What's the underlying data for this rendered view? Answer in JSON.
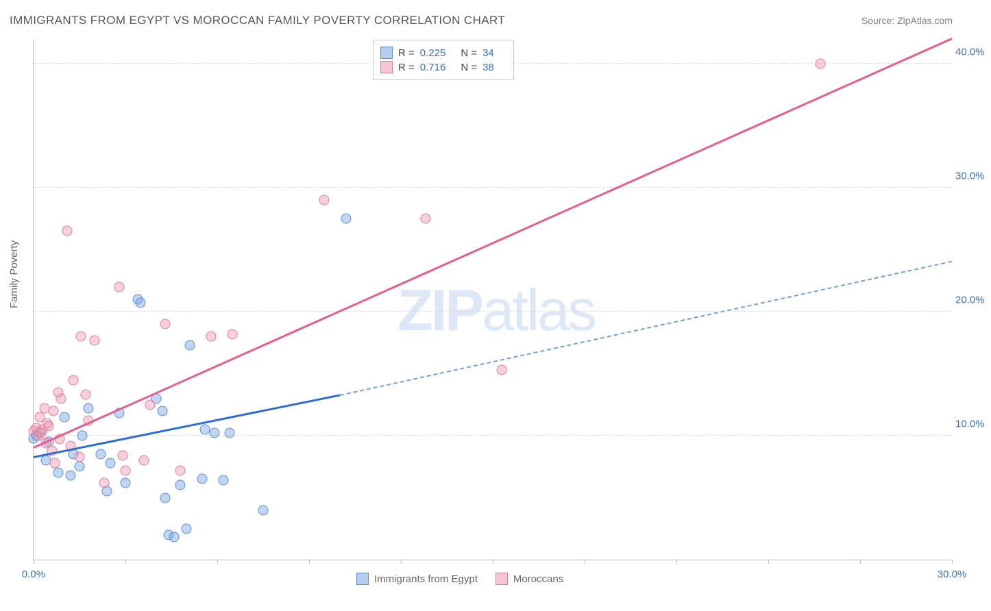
{
  "chart": {
    "type": "scatter",
    "title": "IMMIGRANTS FROM EGYPT VS MOROCCAN FAMILY POVERTY CORRELATION CHART",
    "source_label": "Source: ZipAtlas.com",
    "watermark": "ZIPatlas",
    "y_axis_label": "Family Poverty",
    "background_color": "#ffffff",
    "grid_color": "#dcdcdc",
    "axis_color": "#bbbbbb",
    "tick_label_color": "#3b6fd4",
    "xlim": [
      0,
      30
    ],
    "ylim": [
      0,
      42
    ],
    "x_ticks": [
      {
        "pos": 0,
        "label": "0.0%"
      },
      {
        "pos": 3,
        "label": ""
      },
      {
        "pos": 6,
        "label": ""
      },
      {
        "pos": 9,
        "label": ""
      },
      {
        "pos": 12,
        "label": ""
      },
      {
        "pos": 15,
        "label": ""
      },
      {
        "pos": 18,
        "label": ""
      },
      {
        "pos": 21,
        "label": ""
      },
      {
        "pos": 24,
        "label": ""
      },
      {
        "pos": 27,
        "label": ""
      },
      {
        "pos": 30,
        "label": "30.0%"
      }
    ],
    "y_ticks": [
      {
        "pos": 10,
        "label": "10.0%"
      },
      {
        "pos": 20,
        "label": "20.0%"
      },
      {
        "pos": 30,
        "label": "30.0%"
      },
      {
        "pos": 40,
        "label": "40.0%"
      }
    ],
    "series": [
      {
        "name": "Immigrants from Egypt",
        "color_fill": "rgba(120,165,225,0.45)",
        "color_stroke": "#5a8fd8",
        "trend_color": "#2d6cd4",
        "R": "0.225",
        "N": "34",
        "trend": {
          "x1": 0,
          "y1": 8.2,
          "x2": 10,
          "y2": 13.2,
          "x2_dash": 30,
          "y2_dash": 24.0
        },
        "points": [
          [
            0.0,
            9.8
          ],
          [
            0.1,
            10.0
          ],
          [
            0.2,
            10.3
          ],
          [
            0.4,
            8.0
          ],
          [
            0.5,
            9.5
          ],
          [
            0.8,
            7.0
          ],
          [
            1.0,
            11.5
          ],
          [
            1.2,
            6.8
          ],
          [
            1.3,
            8.5
          ],
          [
            1.5,
            7.5
          ],
          [
            1.6,
            10.0
          ],
          [
            1.8,
            12.2
          ],
          [
            2.2,
            8.5
          ],
          [
            2.4,
            5.5
          ],
          [
            2.5,
            7.8
          ],
          [
            2.8,
            11.8
          ],
          [
            3.0,
            6.2
          ],
          [
            3.4,
            21.0
          ],
          [
            3.5,
            20.7
          ],
          [
            4.0,
            13.0
          ],
          [
            4.2,
            12.0
          ],
          [
            4.3,
            5.0
          ],
          [
            4.4,
            2.0
          ],
          [
            4.6,
            1.8
          ],
          [
            4.8,
            6.0
          ],
          [
            5.0,
            2.5
          ],
          [
            5.1,
            17.3
          ],
          [
            5.5,
            6.5
          ],
          [
            5.6,
            10.5
          ],
          [
            5.9,
            10.2
          ],
          [
            6.2,
            6.4
          ],
          [
            6.4,
            10.2
          ],
          [
            7.5,
            4.0
          ],
          [
            10.2,
            27.5
          ]
        ]
      },
      {
        "name": "Moroccans",
        "color_fill": "rgba(240,150,175,0.45)",
        "color_stroke": "#e07ca0",
        "trend_color": "#e85d8e",
        "R": "0.716",
        "N": "38",
        "trend": {
          "x1": 0,
          "y1": 9.0,
          "x2": 30,
          "y2": 42.0
        },
        "points": [
          [
            0.0,
            10.4
          ],
          [
            0.1,
            10.6
          ],
          [
            0.15,
            10.0
          ],
          [
            0.2,
            11.5
          ],
          [
            0.25,
            10.2
          ],
          [
            0.3,
            10.5
          ],
          [
            0.35,
            12.2
          ],
          [
            0.4,
            9.4
          ],
          [
            0.45,
            11.0
          ],
          [
            0.5,
            10.8
          ],
          [
            0.6,
            8.8
          ],
          [
            0.65,
            12.0
          ],
          [
            0.7,
            7.8
          ],
          [
            0.8,
            13.5
          ],
          [
            0.85,
            9.7
          ],
          [
            0.9,
            13.0
          ],
          [
            1.1,
            26.5
          ],
          [
            1.2,
            9.2
          ],
          [
            1.3,
            14.5
          ],
          [
            1.5,
            8.3
          ],
          [
            1.55,
            18.0
          ],
          [
            1.7,
            13.3
          ],
          [
            1.8,
            11.2
          ],
          [
            2.0,
            17.7
          ],
          [
            2.3,
            6.2
          ],
          [
            2.8,
            22.0
          ],
          [
            2.9,
            8.4
          ],
          [
            3.0,
            7.2
          ],
          [
            3.6,
            8.0
          ],
          [
            3.8,
            12.5
          ],
          [
            4.3,
            19.0
          ],
          [
            4.8,
            7.2
          ],
          [
            5.8,
            18.0
          ],
          [
            6.5,
            18.2
          ],
          [
            9.5,
            29.0
          ],
          [
            12.8,
            27.5
          ],
          [
            15.3,
            15.3
          ],
          [
            25.7,
            40.0
          ]
        ]
      }
    ],
    "top_legend": {
      "r_label": "R =",
      "n_label": "N ="
    },
    "bottom_legend": [
      {
        "swatch": "blue",
        "label": "Immigrants from Egypt"
      },
      {
        "swatch": "pink",
        "label": "Moroccans"
      }
    ]
  }
}
